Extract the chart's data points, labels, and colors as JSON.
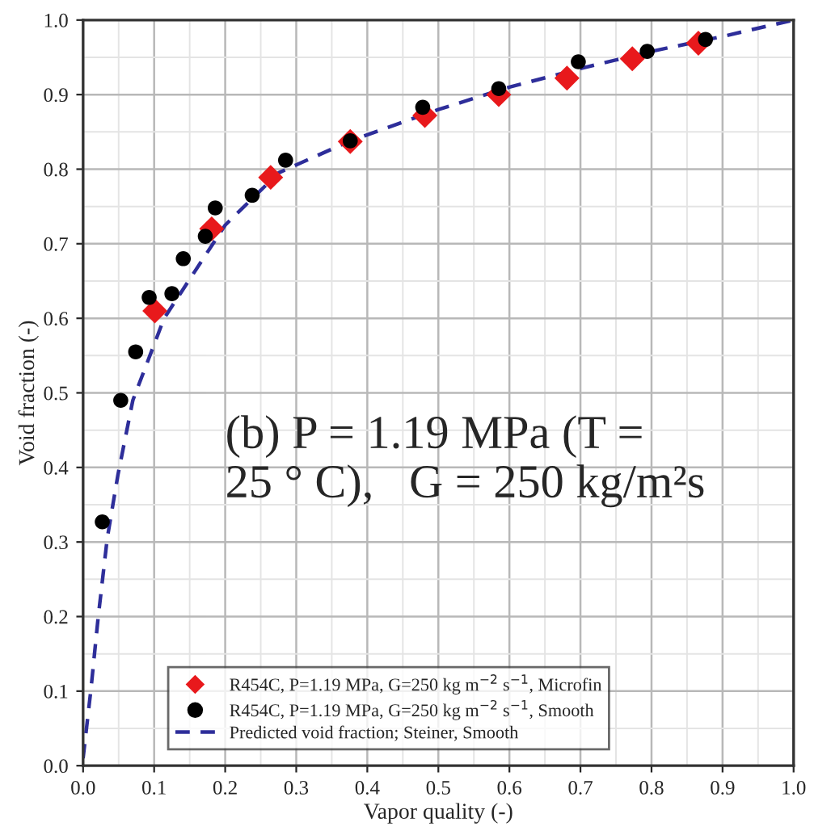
{
  "chart_data": {
    "type": "scatter",
    "xlabel": "Vapor quality (-)",
    "ylabel": "Void fraction (-)",
    "series": [
      {
        "name": "R454C, P=1.19 MPa, G=250 kg m$^{−2}$ s$^{−1}$, Microfin",
        "marker": "diamond",
        "color": "#e8191c",
        "x": [
          0.101,
          0.181,
          0.264,
          0.376,
          0.481,
          0.585,
          0.681,
          0.773,
          0.866
        ],
        "values": [
          0.61,
          0.72,
          0.789,
          0.837,
          0.872,
          0.9,
          0.922,
          0.948,
          0.969
        ]
      },
      {
        "name": "R454C, P=1.19 MPa, G=250 kg m$^{−2}$ s$^{−1}$, Smooth",
        "marker": "circle",
        "color": "#000000",
        "x": [
          0.027,
          0.053,
          0.074,
          0.093,
          0.125,
          0.141,
          0.172,
          0.186,
          0.238,
          0.285,
          0.376,
          0.478,
          0.585,
          0.697,
          0.794,
          0.876
        ],
        "values": [
          0.327,
          0.49,
          0.555,
          0.628,
          0.633,
          0.68,
          0.71,
          0.748,
          0.765,
          0.812,
          0.838,
          0.883,
          0.908,
          0.944,
          0.958,
          0.974
        ]
      },
      {
        "name": "Predicted void fraction; Steiner, Smooth",
        "type": "line",
        "marker": "none",
        "line_style": "dashed",
        "color": "#2e2e9a",
        "x": [
          0.0,
          0.011,
          0.021,
          0.034,
          0.049,
          0.07,
          0.114,
          0.2,
          0.275,
          0.376,
          0.5,
          0.6,
          0.7,
          0.8,
          0.9,
          1.0
        ],
        "values": [
          0.01,
          0.102,
          0.197,
          0.305,
          0.39,
          0.49,
          0.6,
          0.725,
          0.795,
          0.838,
          0.88,
          0.91,
          0.935,
          0.958,
          0.978,
          1.0
        ]
      }
    ],
    "xlim": [
      0,
      1
    ],
    "ylim": [
      0,
      1
    ],
    "xticks": [
      {
        "value": 0,
        "label": "0.0"
      },
      0.1,
      0.2,
      0.3,
      0.4,
      0.5,
      0.6,
      0.7,
      0.8,
      0.9,
      {
        "value": 1,
        "label": "1.0"
      }
    ],
    "yticks": [
      {
        "value": 0,
        "label": "0.0"
      },
      0.1,
      0.2,
      0.3,
      0.4,
      0.5,
      0.6,
      0.7,
      0.8,
      0.9,
      {
        "value": 1,
        "label": "1.0"
      }
    ],
    "grid": true,
    "legend": "bottom",
    "annotations": [
      "(b) P = 1.19 MPa (T =\n25 ° C),   G = 250 kg/m²s"
    ]
  }
}
